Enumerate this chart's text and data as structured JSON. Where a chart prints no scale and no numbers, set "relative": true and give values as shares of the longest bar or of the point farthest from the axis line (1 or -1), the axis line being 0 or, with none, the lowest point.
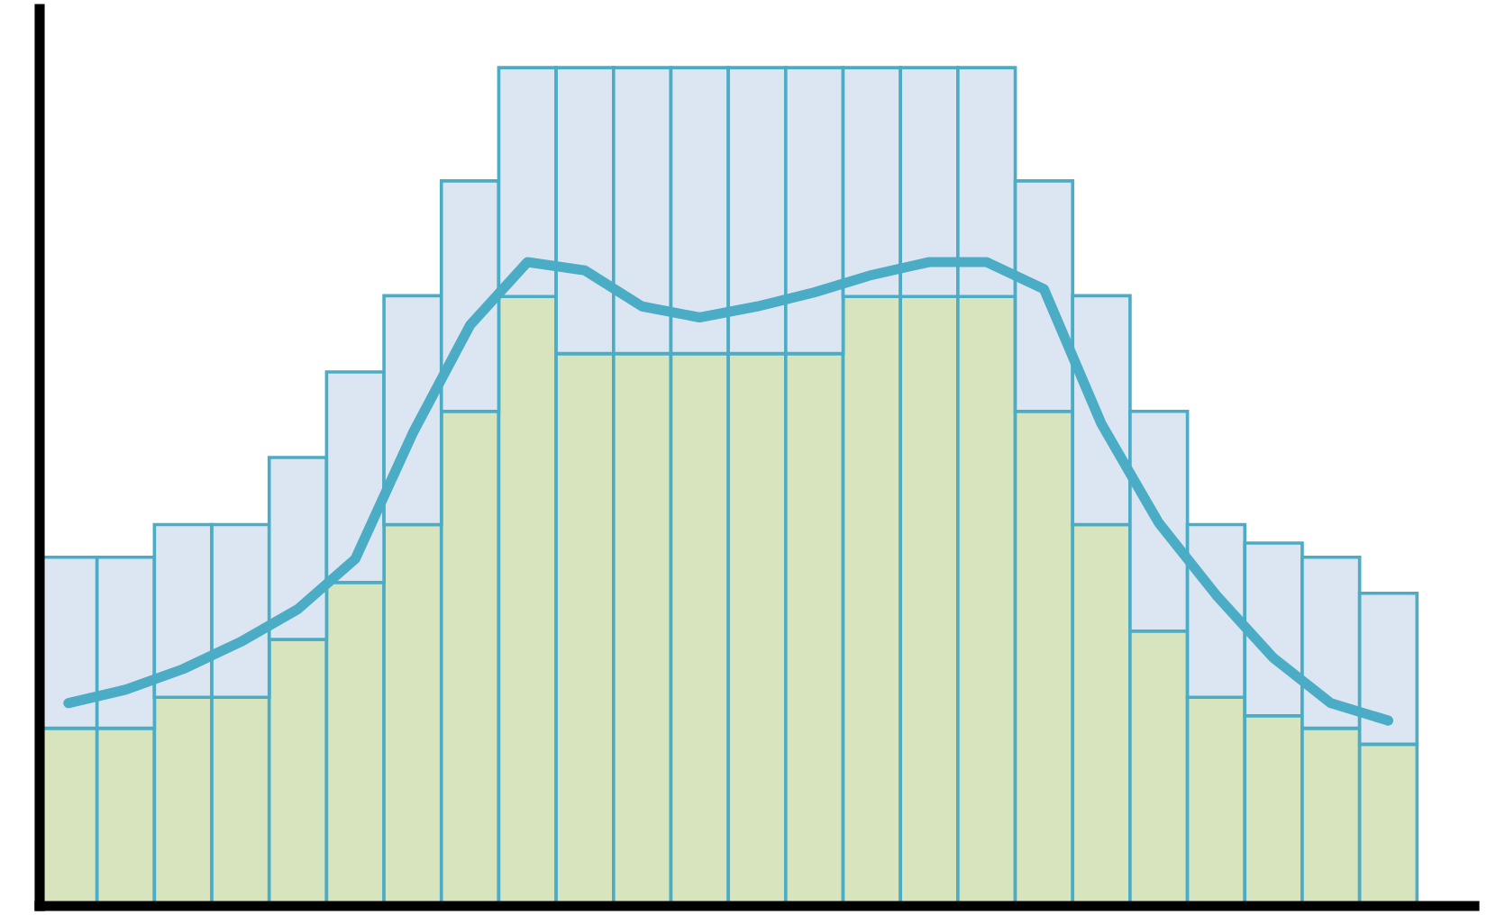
{
  "chart_data": [
    {
      "type": "bar",
      "relative": true,
      "stacked": true,
      "tick_labels": false,
      "categories": [
        null,
        null,
        null,
        null,
        null,
        null,
        null,
        null,
        null,
        null,
        null,
        null,
        null,
        null,
        null,
        null,
        null,
        null,
        null,
        null,
        null,
        null,
        null,
        null
      ],
      "series": [
        {
          "color": "#d7e4bd",
          "values": [
            0.212,
            0.212,
            0.249,
            0.249,
            0.318,
            0.386,
            0.455,
            0.59,
            0.727,
            0.659,
            0.659,
            0.659,
            0.659,
            0.659,
            0.727,
            0.727,
            0.727,
            0.59,
            0.455,
            0.328,
            0.249,
            0.227,
            0.212,
            0.193
          ]
        },
        {
          "color": "#dce6f2",
          "values": [
            0.204,
            0.204,
            0.206,
            0.206,
            0.217,
            0.251,
            0.273,
            0.275,
            0.273,
            0.341,
            0.341,
            0.341,
            0.341,
            0.341,
            0.273,
            0.273,
            0.273,
            0.275,
            0.273,
            0.262,
            0.206,
            0.206,
            0.204,
            0.18
          ]
        }
      ]
    },
    {
      "type": "line",
      "relative": true,
      "tick_labels": false,
      "line_style": "solid",
      "marker": "none",
      "categories": [
        null,
        null,
        null,
        null,
        null,
        null,
        null,
        null,
        null,
        null,
        null,
        null,
        null,
        null,
        null,
        null,
        null,
        null,
        null,
        null,
        null,
        null,
        null,
        null
      ],
      "series": [
        {
          "color": "#4bacc6",
          "values": [
            0.315,
            0.336,
            0.368,
            0.41,
            0.461,
            0.539,
            0.734,
            0.902,
            1,
            0.987,
            0.931,
            0.914,
            0.931,
            0.953,
            0.98,
            1,
            1,
            0.958,
            0.749,
            0.595,
            0.483,
            0.385,
            0.315,
            0.288
          ]
        }
      ]
    }
  ]
}
